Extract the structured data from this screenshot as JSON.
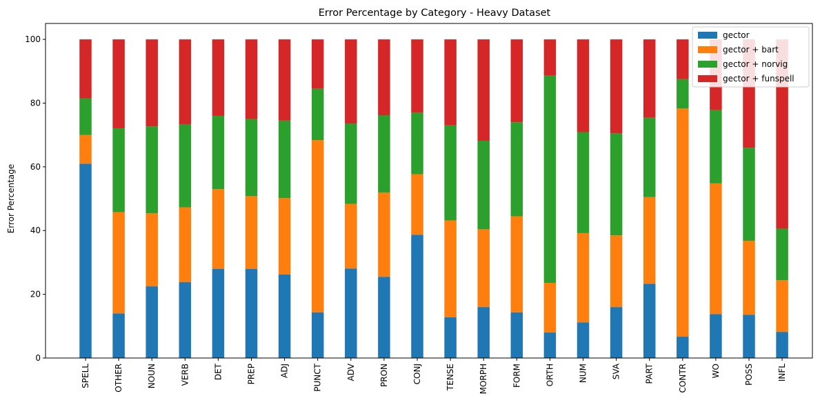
{
  "chart_data": {
    "type": "bar",
    "stacked": true,
    "title": "Error Percentage by Category - Heavy Dataset",
    "xlabel": "",
    "ylabel": "Error Percentage",
    "ylim": [
      0,
      105
    ],
    "yticks": [
      0,
      20,
      40,
      60,
      80,
      100
    ],
    "grid": false,
    "legend_position": "top-right",
    "categories": [
      "SPELL",
      "OTHER",
      "NOUN",
      "VERB",
      "DET",
      "PREP",
      "ADJ",
      "PUNCT",
      "ADV",
      "PRON",
      "CONJ",
      "TENSE",
      "MORPH",
      "FORM",
      "ORTH",
      "NUM",
      "SVA",
      "PART",
      "CONTR",
      "WO",
      "POSS",
      "INFL"
    ],
    "series": [
      {
        "name": "gector",
        "color": "#1f77b4",
        "values": [
          61.0,
          14.0,
          22.5,
          23.8,
          28.0,
          28.0,
          26.2,
          14.3,
          28.1,
          25.5,
          38.7,
          12.8,
          16.0,
          14.3,
          8.0,
          11.2,
          16.0,
          23.3,
          6.7,
          13.8,
          13.6,
          8.2
        ]
      },
      {
        "name": "gector + bart",
        "color": "#ff7f0e",
        "values": [
          9.0,
          31.8,
          22.9,
          23.5,
          25.0,
          22.8,
          24.0,
          54.1,
          20.3,
          26.4,
          19.0,
          30.4,
          24.4,
          30.2,
          15.6,
          28.0,
          22.5,
          27.2,
          71.6,
          41.0,
          23.2,
          16.2
        ]
      },
      {
        "name": "gector + norvig",
        "color": "#2ca02c",
        "values": [
          11.5,
          26.3,
          27.3,
          26.0,
          23.0,
          24.2,
          24.3,
          16.1,
          25.2,
          24.3,
          19.3,
          29.8,
          27.8,
          29.5,
          65.0,
          31.7,
          32.0,
          24.9,
          9.2,
          23.0,
          29.2,
          16.2
        ]
      },
      {
        "name": "gector + funspell",
        "color": "#d62728",
        "values": [
          18.5,
          27.9,
          27.3,
          26.7,
          24.0,
          25.0,
          25.5,
          15.5,
          26.4,
          23.8,
          23.0,
          27.0,
          31.8,
          26.0,
          11.4,
          29.1,
          29.5,
          24.6,
          12.5,
          22.2,
          34.0,
          59.4
        ]
      }
    ]
  }
}
